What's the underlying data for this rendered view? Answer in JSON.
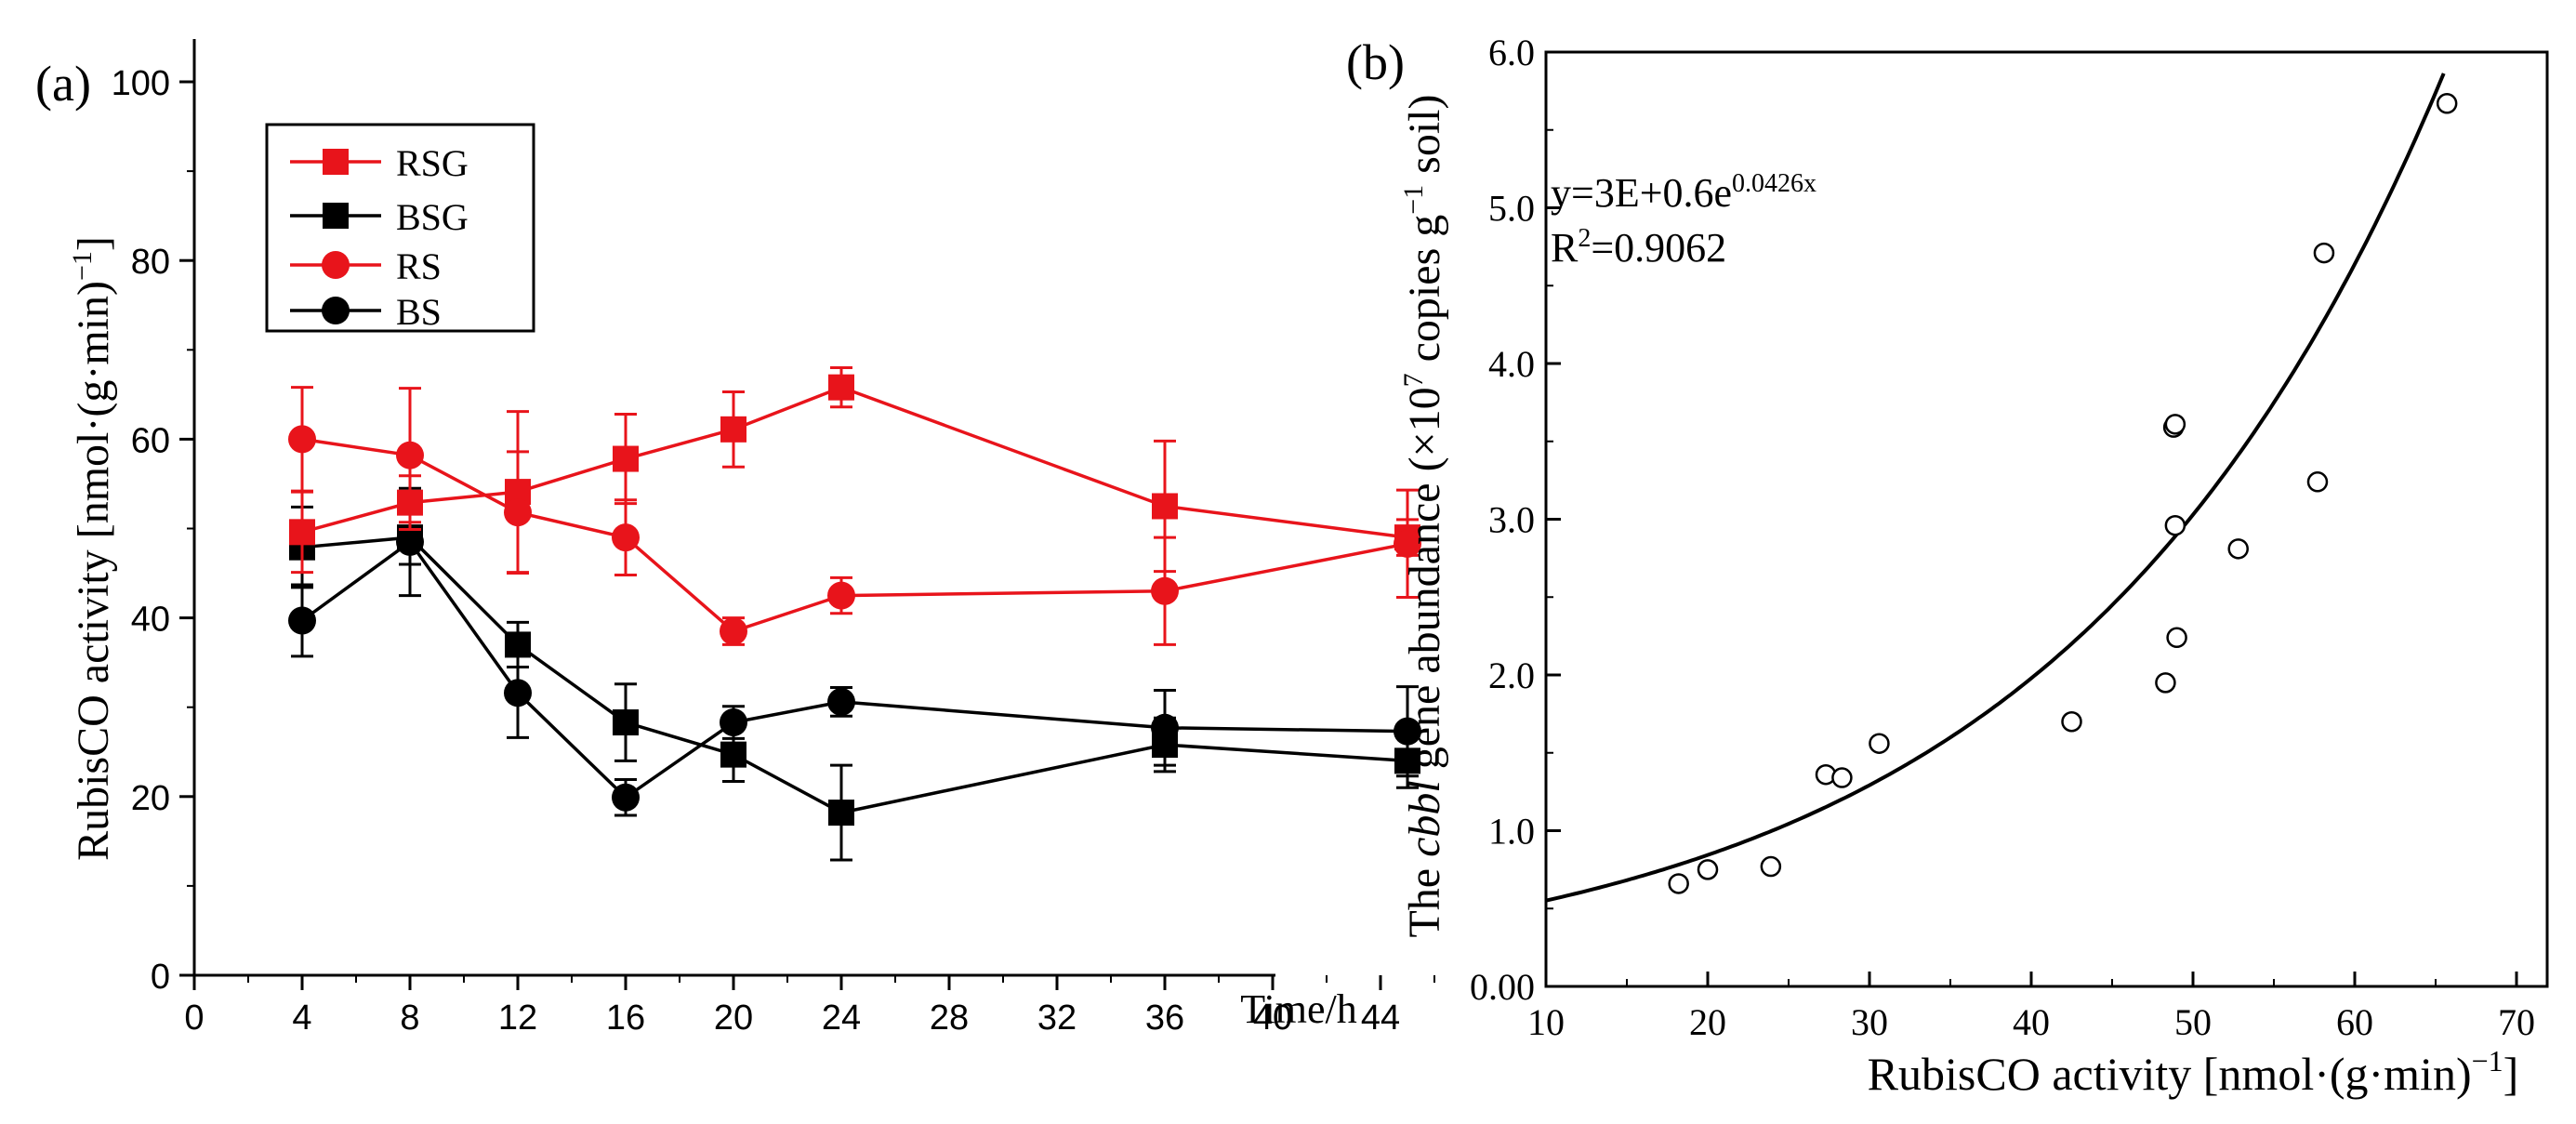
{
  "chart_data": [
    {
      "panel_label": "(a)",
      "type": "line",
      "ylabel": "RubisCO activity [nmol·(g·min)",
      "ylabel_sup": "−1",
      "ylabel_tail": "]",
      "xlabel": "Time/h",
      "xlim": [
        0,
        46
      ],
      "ylim": [
        0,
        100
      ],
      "xticks": [
        0,
        4,
        8,
        12,
        16,
        20,
        24,
        28,
        32,
        36,
        40,
        44
      ],
      "yticks": [
        0,
        20,
        40,
        60,
        80,
        100
      ],
      "legend_position": "top-left",
      "series": [
        {
          "name": "RSG",
          "color": "#e8141b",
          "marker": "square",
          "x": [
            4,
            8,
            12,
            16,
            20,
            24,
            36,
            45
          ],
          "y": [
            49.6,
            52.9,
            54.1,
            57.8,
            61.1,
            65.8,
            52.5,
            49.0
          ],
          "err": [
            4.5,
            3.0,
            9.0,
            5.0,
            4.2,
            2.2,
            7.3,
            2.0
          ]
        },
        {
          "name": "BSG",
          "color": "#000000",
          "marker": "square",
          "x": [
            4,
            8,
            12,
            16,
            20,
            24,
            36,
            45
          ],
          "y": [
            47.9,
            49.0,
            37.0,
            28.3,
            24.7,
            18.2,
            25.8,
            24.0
          ],
          "err": [
            4.5,
            3.0,
            2.5,
            4.3,
            3.0,
            5.3,
            3.0,
            3.0
          ]
        },
        {
          "name": "RS",
          "color": "#e8141b",
          "marker": "circle",
          "x": [
            4,
            8,
            12,
            16,
            20,
            24,
            36,
            45
          ],
          "y": [
            60.0,
            58.2,
            51.8,
            49.0,
            38.5,
            42.5,
            43.0,
            48.3
          ],
          "err": [
            5.8,
            7.5,
            6.8,
            4.2,
            1.5,
            2.0,
            6.0,
            6.0
          ]
        },
        {
          "name": "BS",
          "color": "#000000",
          "marker": "circle",
          "x": [
            4,
            8,
            12,
            16,
            20,
            24,
            36,
            45
          ],
          "y": [
            39.7,
            48.5,
            31.6,
            19.9,
            28.3,
            30.6,
            27.7,
            27.3
          ],
          "err": [
            4.0,
            6.0,
            5.0,
            2.0,
            1.8,
            1.6,
            4.2,
            5.0
          ]
        }
      ]
    },
    {
      "panel_label": "(b)",
      "type": "scatter",
      "xlabel": "RubisCO activity [nmol·(g·min)",
      "xlabel_sup": "−1",
      "xlabel_tail": "]",
      "ylabel_pre": "The ",
      "ylabel_italic": "cbbl",
      "ylabel_mid": " gene abundance (×10",
      "ylabel_sup1": "7",
      "ylabel_mid2": " copies g",
      "ylabel_sup2": "−1",
      "ylabel_tail": " soil)",
      "xlim": [
        10,
        73
      ],
      "ylim": [
        0,
        6.0
      ],
      "xticks": [
        10,
        20,
        30,
        40,
        50,
        60,
        70
      ],
      "yticks": [
        0,
        1,
        2,
        3,
        4,
        5,
        6
      ],
      "ytick_labels": [
        "0.00",
        "1.0",
        "2.0",
        "3.0",
        "4.0",
        "5.0",
        "6.0"
      ],
      "equation_main": "y=3E+0.6e",
      "equation_exp": "0.0426x",
      "r2_prefix": "R",
      "r2_sup": "2",
      "r2_value": "=0.9062",
      "fit": {
        "a": 0.36,
        "b": 0.0426,
        "x_from": 10,
        "x_to": 65.6
      },
      "points": [
        {
          "x": 18.2,
          "y": 0.66
        },
        {
          "x": 20.0,
          "y": 0.75
        },
        {
          "x": 23.9,
          "y": 0.77
        },
        {
          "x": 27.3,
          "y": 1.36
        },
        {
          "x": 28.3,
          "y": 1.34
        },
        {
          "x": 30.6,
          "y": 1.56
        },
        {
          "x": 42.5,
          "y": 1.7
        },
        {
          "x": 48.3,
          "y": 1.95
        },
        {
          "x": 48.8,
          "y": 3.59
        },
        {
          "x": 48.9,
          "y": 3.61
        },
        {
          "x": 48.9,
          "y": 2.96
        },
        {
          "x": 49.0,
          "y": 2.24
        },
        {
          "x": 52.8,
          "y": 2.81
        },
        {
          "x": 57.7,
          "y": 3.24
        },
        {
          "x": 58.1,
          "y": 4.71
        },
        {
          "x": 65.7,
          "y": 5.67
        }
      ]
    }
  ]
}
